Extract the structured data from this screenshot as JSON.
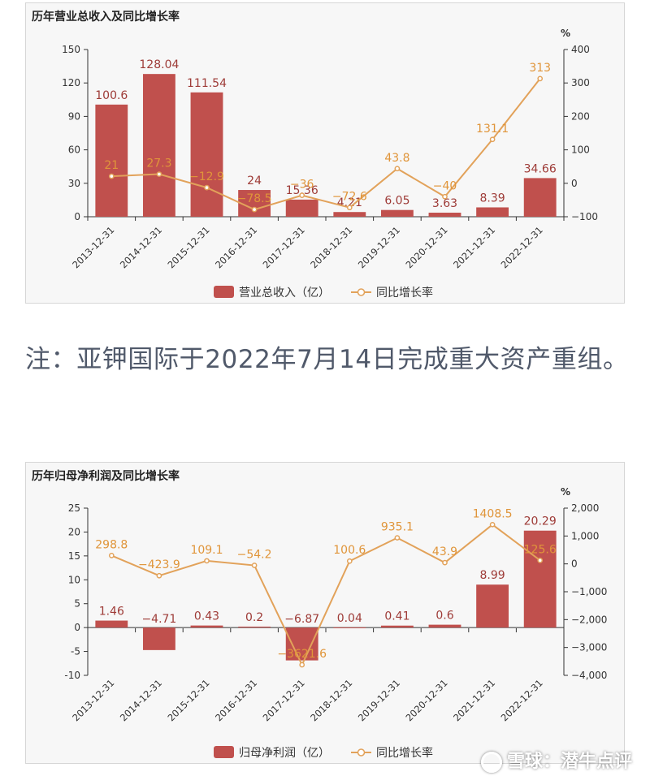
{
  "colors": {
    "bar": "#c0504d",
    "line": "#e2a25a",
    "axis": "#333333",
    "grid": "#dddddd"
  },
  "note": "注：亚钾国际于2022年7月14日完成重大资产重组。",
  "watermark": "雪球：潜牛点评",
  "chart_data": [
    {
      "type": "bar",
      "title": "历年营业总收入及同比增长率",
      "categories": [
        "2013-12-31",
        "2014-12-31",
        "2015-12-31",
        "2016-12-31",
        "2017-12-31",
        "2018-12-31",
        "2019-12-31",
        "2020-12-31",
        "2021-12-31",
        "2022-12-31"
      ],
      "series": [
        {
          "name": "营业总收入（亿）",
          "type": "bar",
          "axis": "left",
          "values": [
            100.6,
            128.04,
            111.54,
            24,
            15.36,
            4.21,
            6.05,
            3.63,
            8.39,
            34.66
          ],
          "labels": [
            "100.6",
            "128.04",
            "111.54",
            "24",
            "15.36",
            "4.21",
            "6.05",
            "3.63",
            "8.39",
            "34.66"
          ]
        },
        {
          "name": "同比增长率",
          "type": "line",
          "axis": "right",
          "values": [
            21,
            27.3,
            -12.9,
            -78.5,
            -36,
            -72.6,
            43.8,
            -40,
            131.1,
            313
          ],
          "labels": [
            "21",
            "27.3",
            "−12.9",
            "−78.5",
            "−36",
            "−72.6",
            "43.8",
            "−40",
            "131.1",
            "313"
          ]
        }
      ],
      "y_left": {
        "ylim": [
          0,
          150
        ],
        "ticks": [
          0,
          30,
          60,
          90,
          120,
          150
        ]
      },
      "y_right": {
        "ylim": [
          -100,
          400
        ],
        "ticks": [
          -100,
          0,
          100,
          200,
          300,
          400
        ],
        "unit": "%"
      },
      "grid": false,
      "legend": "bottom-center"
    },
    {
      "type": "bar",
      "title": "历年归母净利润及同比增长率",
      "categories": [
        "2013-12-31",
        "2014-12-31",
        "2015-12-31",
        "2016-12-31",
        "2017-12-31",
        "2018-12-31",
        "2019-12-31",
        "2020-12-31",
        "2021-12-31",
        "2022-12-31"
      ],
      "series": [
        {
          "name": "归母净利润（亿）",
          "type": "bar",
          "axis": "left",
          "values": [
            1.46,
            -4.71,
            0.43,
            0.2,
            -6.87,
            0.04,
            0.41,
            0.6,
            8.99,
            20.29
          ],
          "labels": [
            "1.46",
            "−4.71",
            "0.43",
            "0.2",
            "−6.87",
            "0.04",
            "0.41",
            "0.6",
            "8.99",
            "20.29"
          ]
        },
        {
          "name": "同比增长率",
          "type": "line",
          "axis": "right",
          "values": [
            298.8,
            -423.9,
            109.1,
            -54.2,
            -3621.6,
            100.6,
            935.1,
            43.9,
            1408.5,
            125.6
          ],
          "labels": [
            "298.8",
            "−423.9",
            "109.1",
            "−54.2",
            "−3621.6",
            "100.6",
            "935.1",
            "43.9",
            "1408.5",
            "125.6"
          ]
        }
      ],
      "y_left": {
        "ylim": [
          -10,
          25
        ],
        "ticks": [
          -10,
          -5,
          0,
          5,
          10,
          15,
          20,
          25
        ]
      },
      "y_right": {
        "ylim": [
          -4000,
          2000
        ],
        "ticks": [
          -4000,
          -3000,
          -2000,
          -1000,
          0,
          1000,
          2000
        ],
        "tick_labels": [
          "−4,000",
          "−3,000",
          "−2,000",
          "−1,000",
          "0",
          "1,000",
          "2,000"
        ],
        "unit": "%"
      },
      "grid": false,
      "legend": "bottom-center"
    }
  ]
}
